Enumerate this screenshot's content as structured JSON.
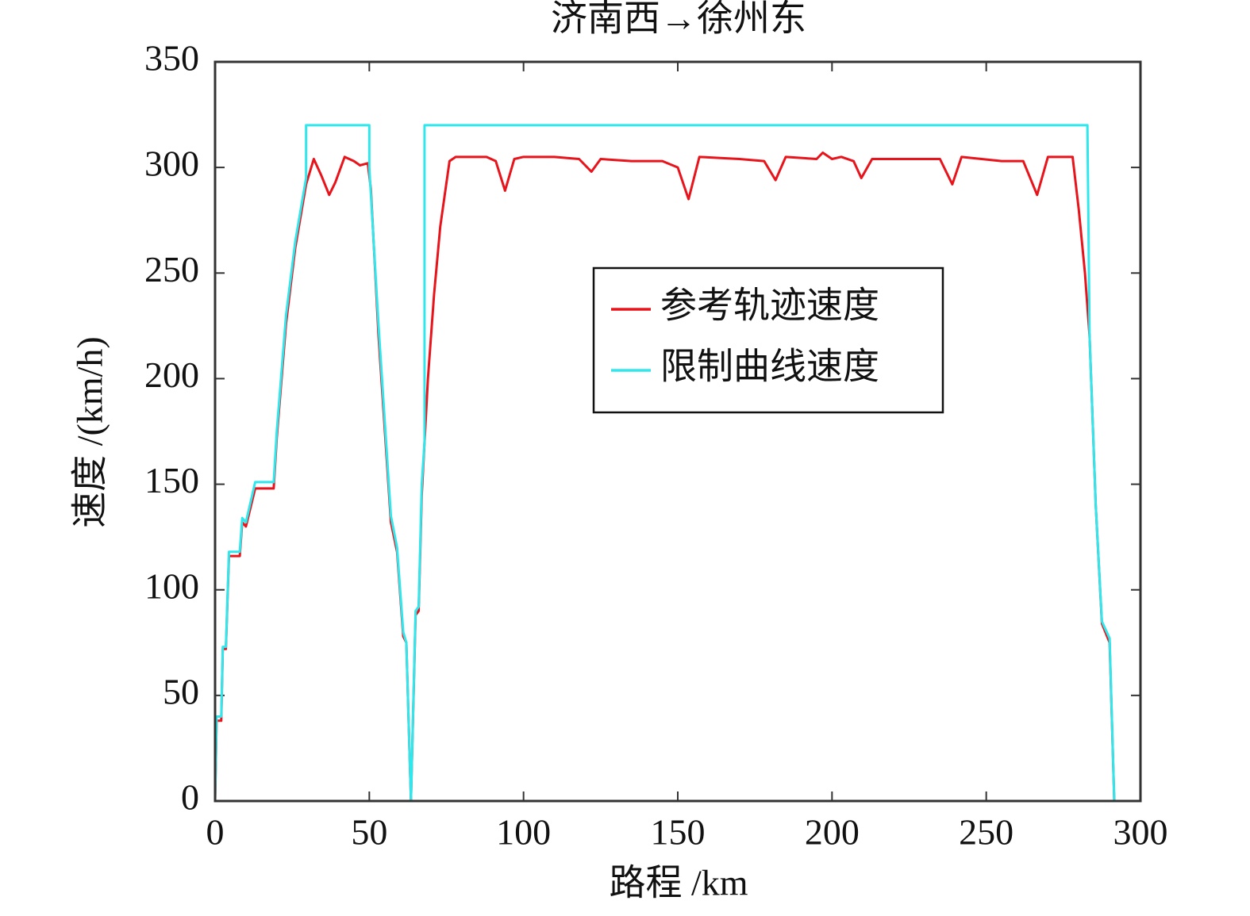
{
  "chart_data": {
    "type": "line",
    "title": "济南西→徐州东",
    "xlabel": "路程 /km",
    "ylabel": "速度 /(km/h)",
    "xlim": [
      0,
      300
    ],
    "xticks": [
      0,
      50,
      100,
      150,
      200,
      250,
      300
    ],
    "ylim": [
      0,
      350
    ],
    "yticks": [
      0,
      50,
      100,
      150,
      200,
      250,
      300,
      350
    ],
    "legend": "upper right",
    "series": [
      {
        "name": "参考轨迹速度",
        "color": "#e8141c",
        "x": [
          0,
          0.5,
          2,
          2.5,
          3.5,
          4.5,
          8,
          8.8,
          10,
          13,
          19,
          20,
          23,
          26,
          29.5,
          32,
          34.5,
          37,
          39,
          42,
          45,
          47,
          49.5,
          50.5,
          53,
          57,
          59,
          61,
          62,
          63.5,
          65,
          66,
          67,
          69,
          71,
          73,
          76,
          78,
          88,
          91,
          94,
          97,
          100,
          110,
          118,
          122,
          125,
          135,
          145,
          150,
          153.5,
          157,
          170,
          178,
          181.7,
          185,
          195,
          197,
          200,
          203,
          207,
          209.5,
          213,
          225,
          235,
          239,
          242,
          255,
          262,
          266.5,
          270,
          278,
          280,
          282,
          283.5,
          285.5,
          287.5,
          290,
          291.5
        ],
        "values": [
          0,
          38,
          38,
          72,
          72,
          116,
          116,
          132,
          130,
          148,
          148,
          172,
          226,
          262,
          292,
          304,
          296,
          287,
          293,
          305,
          303,
          301,
          302,
          290,
          220,
          132,
          118,
          78,
          75,
          0,
          88,
          90,
          145,
          200,
          240,
          272,
          303,
          305,
          305,
          303,
          289,
          304,
          305,
          305,
          304,
          298,
          304,
          303,
          303,
          300,
          285,
          305,
          304,
          303,
          294,
          305,
          304,
          307,
          304,
          305,
          303,
          295,
          304,
          304,
          304,
          292,
          305,
          303,
          303,
          287,
          305,
          305,
          280,
          250,
          220,
          140,
          84,
          75,
          0
        ]
      },
      {
        "name": "限制曲线速度",
        "color": "#2ee8ee",
        "x": [
          0,
          0.5,
          2,
          2.5,
          3.5,
          4.5,
          8,
          8.8,
          10,
          13,
          19,
          20,
          23,
          26,
          29.5,
          29.5,
          50,
          50,
          53,
          57,
          59,
          61,
          62,
          63.5,
          65,
          66,
          67,
          67.9,
          67.9,
          282.8,
          283.5,
          285.5,
          287.5,
          290,
          291.5
        ],
        "values": [
          0,
          40,
          40,
          73,
          73,
          118,
          118,
          134,
          132,
          151,
          151,
          175,
          230,
          265,
          295,
          320,
          320,
          300,
          225,
          135,
          120,
          80,
          75,
          0,
          90,
          92,
          150,
          170,
          320,
          320,
          220,
          140,
          85,
          77,
          0
        ]
      }
    ]
  }
}
